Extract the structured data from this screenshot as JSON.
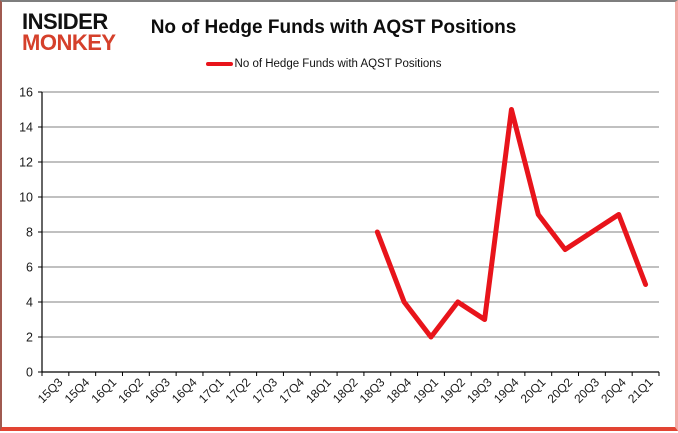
{
  "logo": {
    "line1": "INSIDER",
    "line2": "MONKEY"
  },
  "header": {
    "title": "No of Hedge Funds with AQST Positions"
  },
  "legend": {
    "label": "No of Hedge Funds with AQST Positions"
  },
  "colors": {
    "line": "#e8141b",
    "grid": "#808080",
    "axis": "#000000",
    "text": "#1a1a1a",
    "logo_red": "#d5402b",
    "border_glow": "#e24433"
  },
  "chart_data": {
    "type": "line",
    "title": "No of Hedge Funds with AQST Positions",
    "xlabel": "",
    "ylabel": "",
    "categories": [
      "15Q3",
      "15Q4",
      "16Q1",
      "16Q2",
      "16Q3",
      "16Q4",
      "17Q1",
      "17Q2",
      "17Q3",
      "17Q4",
      "18Q1",
      "18Q2",
      "18Q3",
      "18Q4",
      "19Q1",
      "19Q2",
      "19Q3",
      "19Q4",
      "20Q1",
      "20Q2",
      "20Q3",
      "20Q4",
      "21Q1"
    ],
    "series": [
      {
        "name": "No of Hedge Funds with AQST Positions",
        "color": "#e8141b",
        "values": [
          null,
          null,
          null,
          null,
          null,
          null,
          null,
          null,
          null,
          null,
          null,
          null,
          8,
          4,
          2,
          4,
          3,
          15,
          9,
          7,
          8,
          9,
          5
        ]
      }
    ],
    "ylim": [
      0,
      16
    ],
    "ytick_step": 2,
    "yticks": [
      0,
      2,
      4,
      6,
      8,
      10,
      12,
      14,
      16
    ],
    "grid": true,
    "legend_position": "top"
  }
}
